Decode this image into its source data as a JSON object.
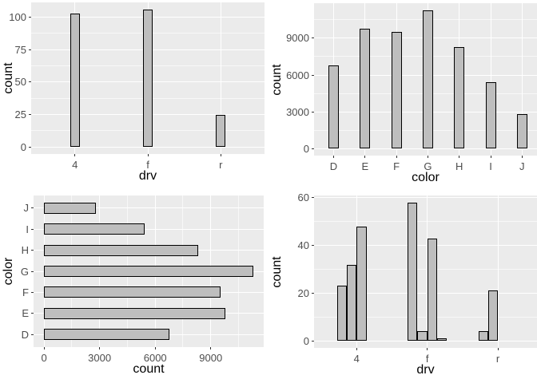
{
  "figure": {
    "description": "Four ggplot-style bar charts in a 2x2 grid with gray panels, white gridlines and gray bars with black outlines"
  },
  "colors": {
    "panel_background": "#ebebeb",
    "gridline": "#ffffff",
    "bar_fill": "#bebebe",
    "bar_border": "#000000",
    "tick_label_text": "#4d4d4d",
    "axis_title_text": "#000000",
    "tick_mark": "#333333"
  },
  "chart_data": [
    {
      "type": "bar",
      "orientation": "vertical",
      "xlabel": "drv",
      "ylabel": "count",
      "categories": [
        "4",
        "f",
        "r"
      ],
      "values": [
        103,
        106,
        25
      ],
      "y_ticks": [
        0,
        25,
        50,
        75,
        100
      ],
      "ylim": [
        -5.3,
        111.3
      ],
      "grid": "major and minor horizontal white lines, vertical white line at each category"
    },
    {
      "type": "bar",
      "orientation": "vertical",
      "xlabel": "color",
      "ylabel": "count",
      "categories": [
        "D",
        "E",
        "F",
        "G",
        "H",
        "I",
        "J"
      ],
      "values": [
        6775,
        9797,
        9542,
        11292,
        8304,
        5422,
        2808
      ],
      "y_ticks": [
        0,
        3000,
        6000,
        9000
      ],
      "ylim": [
        -565,
        11857
      ],
      "grid": "major and minor horizontal white lines, vertical white line at each category"
    },
    {
      "type": "bar",
      "orientation": "horizontal",
      "xlabel": "count",
      "ylabel": "color",
      "categories_top_to_bottom": [
        "J",
        "I",
        "H",
        "G",
        "F",
        "E",
        "D"
      ],
      "values_top_to_bottom": [
        2808,
        5422,
        8304,
        11292,
        9542,
        9797,
        6775
      ],
      "x_ticks": [
        0,
        3000,
        6000,
        9000
      ],
      "xlim": [
        -565,
        11857
      ],
      "grid": "major and minor vertical white lines, horizontal white line at each category"
    },
    {
      "type": "bar",
      "orientation": "vertical",
      "dodged": true,
      "xlabel": "drv",
      "ylabel": "count",
      "categories": [
        "4",
        "f",
        "r"
      ],
      "groups": [
        [
          23,
          32,
          48
        ],
        [
          58,
          4,
          43,
          1
        ],
        [
          4,
          21
        ]
      ],
      "y_ticks": [
        0,
        20,
        40,
        60
      ],
      "ylim": [
        -2.9,
        60.9
      ],
      "grid": "major and minor horizontal white lines, vertical white line at each category"
    }
  ]
}
